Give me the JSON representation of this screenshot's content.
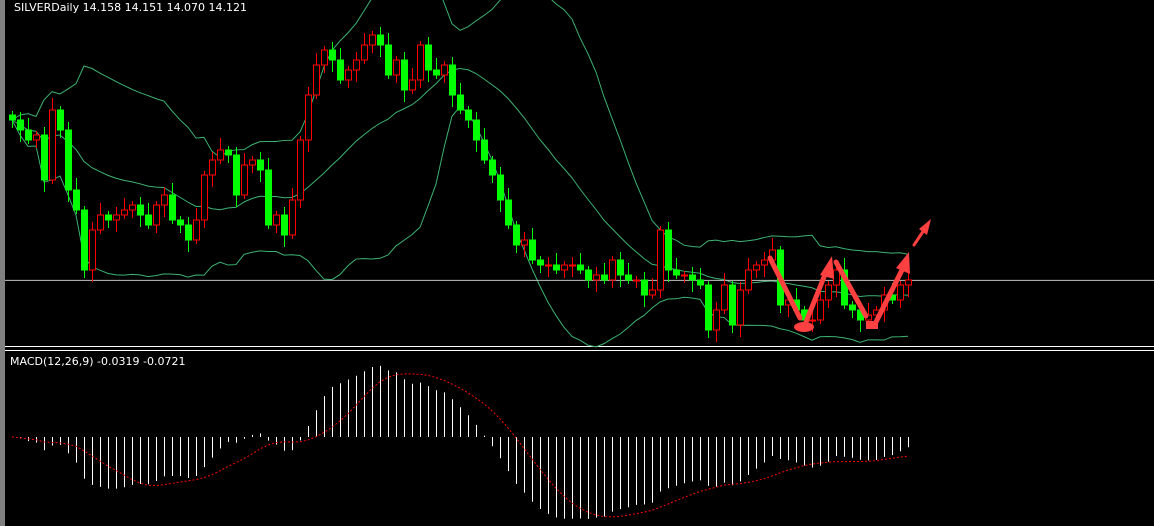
{
  "header": {
    "title": "SILVERDaily 14.158 14.151 14.070 14.121"
  },
  "macd_panel": {
    "label": "MACD(12,26,9) -0.0319 -0.0721"
  },
  "colors": {
    "bull": "#ff0000",
    "bear": "#00ff00",
    "bands": "#3cb371",
    "bid_line": "#c0c0c0",
    "histogram": "#ffffff",
    "signal": "#ff0000",
    "annotation": "#ff4040"
  },
  "chart_data": [
    {
      "type": "candlestick",
      "symbol_timeframe": "SILVERDaily",
      "ylim": [
        13.47,
        16.92
      ],
      "bid": 14.121,
      "indicators": [
        "Bollinger Bands (20,2)"
      ],
      "closes": [
        15.72,
        15.62,
        15.52,
        15.57,
        15.12,
        15.82,
        15.62,
        15.02,
        14.82,
        14.22,
        14.62,
        14.77,
        14.72,
        14.77,
        14.82,
        14.87,
        14.77,
        14.67,
        14.87,
        14.97,
        14.72,
        14.67,
        14.52,
        14.72,
        15.17,
        15.32,
        15.42,
        15.37,
        14.97,
        15.27,
        15.32,
        15.22,
        14.67,
        14.77,
        14.57,
        14.92,
        15.52,
        15.97,
        16.27,
        16.42,
        16.32,
        16.12,
        16.22,
        16.32,
        16.47,
        16.57,
        16.47,
        16.17,
        16.32,
        16.02,
        16.12,
        16.47,
        16.22,
        16.17,
        16.27,
        15.97,
        15.82,
        15.72,
        15.52,
        15.32,
        15.17,
        14.92,
        14.67,
        14.47,
        14.52,
        14.32,
        14.27,
        14.27,
        14.22,
        14.27,
        14.27,
        14.22,
        14.12,
        14.17,
        14.12,
        14.32,
        14.17,
        14.12,
        14.12,
        13.97,
        14.02,
        14.62,
        14.22,
        14.17,
        14.17,
        14.12,
        14.07,
        13.62,
        13.82,
        14.07,
        13.67,
        14.02,
        14.22,
        14.27,
        14.32,
        14.42,
        13.87,
        13.92,
        13.82,
        13.72,
        13.72,
        13.92,
        14.07,
        14.22,
        13.87,
        13.82,
        13.72,
        13.77,
        13.82,
        13.97,
        13.92,
        14.07,
        14.12
      ]
    },
    {
      "type": "bar",
      "name": "MACD(12,26,9)",
      "macd": -0.0319,
      "signal": -0.0721,
      "fast": 12,
      "slow": 26,
      "signal_period": 9
    }
  ]
}
